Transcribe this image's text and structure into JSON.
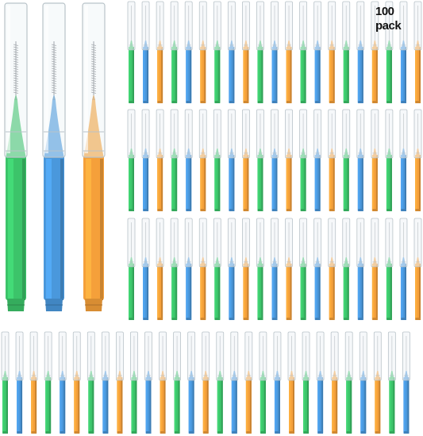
{
  "badge": {
    "text": "100 pack",
    "arrow_color": "#f0a21a"
  },
  "colors": {
    "green": "#3cc46a",
    "blue": "#4a98dc",
    "orange": "#f5a03a",
    "cap": "#eef3f6",
    "cap_edge": "#b9c3c9"
  },
  "product": {
    "featured_brushes": [
      "green",
      "blue",
      "orange"
    ],
    "color_cycle": [
      "green",
      "blue",
      "orange"
    ],
    "count": 100
  }
}
